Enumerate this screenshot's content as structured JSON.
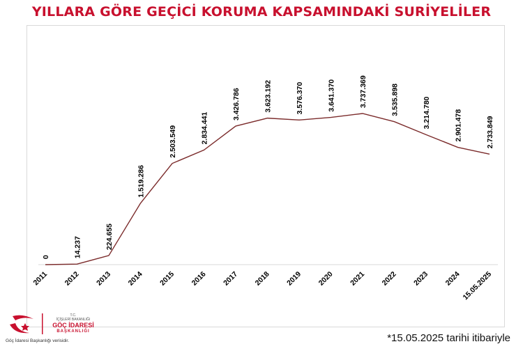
{
  "chart_data": {
    "type": "line",
    "title": "YILLARA GÖRE GEÇİCİ KORUMA KAPSAMINDAKİ SURİYELİLER",
    "categories": [
      "2011",
      "2012",
      "2013",
      "2014",
      "2015",
      "2016",
      "2017",
      "2018",
      "2019",
      "2020",
      "2021",
      "2022",
      "2023",
      "2024",
      "15.05.2025"
    ],
    "values": [
      0,
      14237,
      224655,
      1519286,
      2503549,
      2834441,
      3426786,
      3623192,
      3576370,
      3641370,
      3737369,
      3535898,
      3214780,
      2901478,
      2733849
    ],
    "value_labels": [
      "0",
      "14.237",
      "224.655",
      "1.519.286",
      "2.503.549",
      "2.834.441",
      "3.426.786",
      "3.623.192",
      "3.576.370",
      "3.641.370",
      "3.737.369",
      "3.535.898",
      "3.214.780",
      "2.901.478",
      "2.733.849"
    ],
    "ylim": [
      0,
      4000000
    ],
    "grid": false,
    "legend": "none",
    "colors": {
      "line": "#7b2b2b",
      "title": "#c8102e",
      "axis": "#d9d9d9"
    }
  },
  "footnote": "*15.05.2025 tarihi itibariyle",
  "logo": {
    "top_small": "T.C.",
    "line1": "İÇİŞLERİ BAKANLIĞI",
    "line2": "GÖÇ İDARESİ",
    "line3": "BAŞKANLIĞI",
    "source": "Göç İdaresi Başkanlığı verisidir.",
    "icon": "crescent-star-icon"
  }
}
